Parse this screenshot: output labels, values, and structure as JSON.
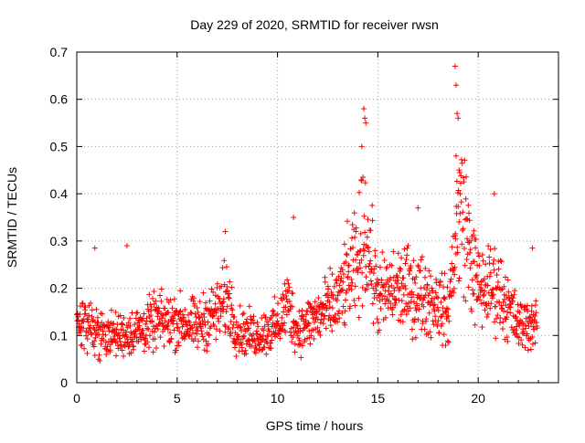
{
  "chart_data": {
    "type": "scatter",
    "title": "Day 229 of 2020, SRMTID for receiver rwsn",
    "xlabel": "GPS time / hours",
    "ylabel": "SRMTID / TECUs",
    "xlim": [
      0,
      24
    ],
    "ylim": [
      0,
      0.7
    ],
    "xticks": [
      0,
      5,
      10,
      15,
      20
    ],
    "yticks": [
      0,
      0.1,
      0.2,
      0.3,
      0.4,
      0.5,
      0.6,
      0.7
    ],
    "grid": true,
    "marker": "+",
    "series_color": "#ff0000",
    "envelope": {
      "description": "approximate mean level of the SRMTID scatter by hour",
      "x": [
        0,
        1,
        2,
        3,
        4,
        5,
        6,
        7,
        7.5,
        8,
        9,
        10,
        10.5,
        11,
        12,
        13,
        13.5,
        14,
        14.3,
        14.6,
        15,
        16,
        17,
        18,
        18.5,
        18.9,
        19.2,
        19.6,
        20,
        21,
        22,
        23
      ],
      "y": [
        0.13,
        0.11,
        0.1,
        0.11,
        0.13,
        0.13,
        0.12,
        0.15,
        0.18,
        0.11,
        0.1,
        0.12,
        0.17,
        0.11,
        0.14,
        0.17,
        0.22,
        0.25,
        0.33,
        0.27,
        0.18,
        0.2,
        0.19,
        0.17,
        0.14,
        0.32,
        0.38,
        0.27,
        0.2,
        0.2,
        0.12,
        0.13
      ]
    },
    "highlights": {
      "description": "notable isolated high points",
      "x": [
        14.3,
        14.35,
        14.4,
        14.2,
        18.85,
        18.9,
        18.95,
        19.0,
        18.9,
        19.05,
        10.8,
        7.4,
        2.5,
        0.9,
        17.0,
        20.8,
        22.7
      ],
      "y": [
        0.58,
        0.56,
        0.55,
        0.5,
        0.67,
        0.63,
        0.57,
        0.56,
        0.48,
        0.45,
        0.35,
        0.32,
        0.29,
        0.285,
        0.37,
        0.4,
        0.285
      ]
    }
  }
}
